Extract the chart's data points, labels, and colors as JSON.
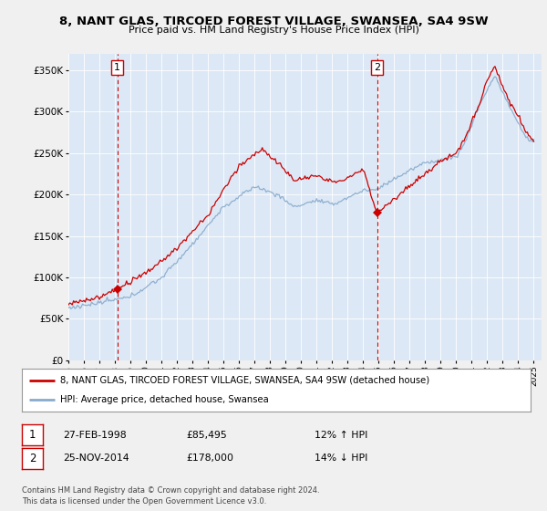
{
  "title": "8, NANT GLAS, TIRCOED FOREST VILLAGE, SWANSEA, SA4 9SW",
  "subtitle": "Price paid vs. HM Land Registry's House Price Index (HPI)",
  "legend_line1": "8, NANT GLAS, TIRCOED FOREST VILLAGE, SWANSEA, SA4 9SW (detached house)",
  "legend_line2": "HPI: Average price, detached house, Swansea",
  "footer": "Contains HM Land Registry data © Crown copyright and database right 2024.\nThis data is licensed under the Open Government Licence v3.0.",
  "sale1_label": "1",
  "sale1_date": "27-FEB-1998",
  "sale1_price": "£85,495",
  "sale1_hpi": "12% ↑ HPI",
  "sale1_x": 1998.15,
  "sale1_y": 85495,
  "sale2_label": "2",
  "sale2_date": "25-NOV-2014",
  "sale2_price": "£178,000",
  "sale2_hpi": "14% ↓ HPI",
  "sale2_x": 2014.9,
  "sale2_y": 178000,
  "ylim": [
    0,
    370000
  ],
  "xlim": [
    1995.0,
    2025.5
  ],
  "plot_bg": "#dce8f5",
  "fig_bg": "#f0f0f0",
  "grid_color": "#ffffff",
  "red_line_color": "#cc0000",
  "blue_line_color": "#88aacc",
  "sale_marker_color": "#cc0000",
  "dashed_line_color": "#cc0000",
  "box_color": "#cc0000"
}
